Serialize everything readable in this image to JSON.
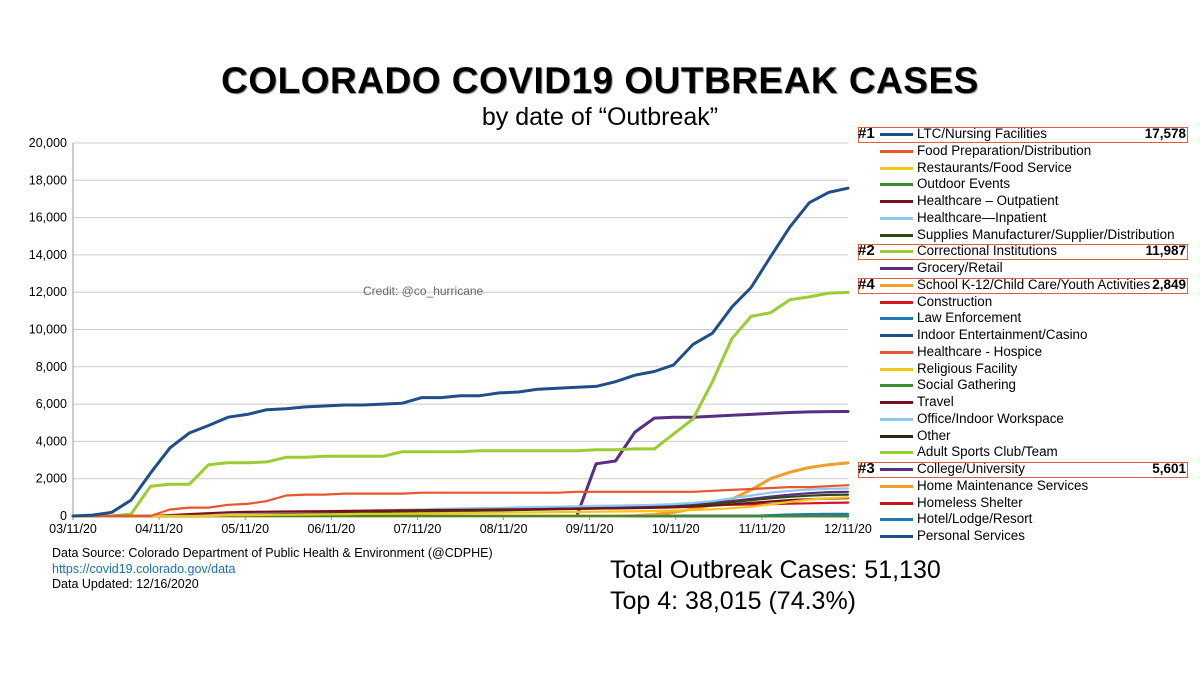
{
  "title": "COLORADO COVID19 OUTBREAK CASES",
  "subtitle": "by date of “Outbreak”",
  "credit": "Credit: @co_hurricane",
  "source": {
    "line1": "Data Source:  Colorado Department of Public Health & Environment (@CDPHE)",
    "link": "https://covid19.colorado.gov/data",
    "line3": "Data Updated:  12/16/2020"
  },
  "totals": {
    "line1": "Total Outbreak Cases:  51,130",
    "line2": "Top 4:  38,015 (74.3%)"
  },
  "colors": {
    "highlight_box": "#e0603a",
    "grid": "#cccccc",
    "axis": "#999999"
  },
  "chart_data": {
    "type": "line",
    "x_labels": [
      "03/11/20",
      "04/11/20",
      "05/11/20",
      "06/11/20",
      "07/11/20",
      "08/11/20",
      "09/11/20",
      "10/11/20",
      "11/11/20",
      "12/11/20"
    ],
    "x": [
      "03/11/20",
      "03/18/20",
      "03/25/20",
      "04/01/20",
      "04/08/20",
      "04/15/20",
      "04/22/20",
      "04/29/20",
      "05/06/20",
      "05/13/20",
      "05/20/20",
      "05/27/20",
      "06/03/20",
      "06/10/20",
      "06/17/20",
      "06/24/20",
      "07/01/20",
      "07/08/20",
      "07/15/20",
      "07/22/20",
      "07/29/20",
      "08/05/20",
      "08/12/20",
      "08/19/20",
      "08/26/20",
      "09/02/20",
      "09/09/20",
      "09/16/20",
      "09/23/20",
      "09/30/20",
      "10/07/20",
      "10/14/20",
      "10/21/20",
      "10/28/20",
      "11/04/20",
      "11/11/20",
      "11/18/20",
      "11/25/20",
      "12/02/20",
      "12/09/20",
      "12/16/20"
    ],
    "ylim": [
      0,
      20000
    ],
    "yticks": [
      0,
      2000,
      4000,
      6000,
      8000,
      10000,
      12000,
      14000,
      16000,
      18000,
      20000
    ],
    "ytick_labels": [
      "0",
      "2,000",
      "4,000",
      "6,000",
      "8,000",
      "10,000",
      "12,000",
      "14,000",
      "16,000",
      "18,000",
      "20,000"
    ],
    "grid": true,
    "legend_position": "right",
    "series": [
      {
        "name": "LTC/Nursing Facilities",
        "color": "#1f4e8a",
        "rank": "#1",
        "total": "17,578",
        "highlight": true,
        "values": [
          0,
          50,
          200,
          850,
          2300,
          3650,
          4450,
          4850,
          5300,
          5450,
          5700,
          5750,
          5850,
          5900,
          5950,
          5950,
          6000,
          6050,
          6350,
          6350,
          6450,
          6450,
          6600,
          6650,
          6800,
          6850,
          6900,
          6950,
          7200,
          7550,
          7750,
          8100,
          9200,
          9800,
          11200,
          12250,
          13900,
          15500,
          16800,
          17350,
          17578
        ]
      },
      {
        "name": "Food Preparation/Distribution",
        "color": "#e8552a",
        "values": [
          0,
          0,
          0,
          0,
          0,
          350,
          450,
          450,
          600,
          650,
          800,
          1100,
          1150,
          1150,
          1200,
          1200,
          1200,
          1200,
          1250,
          1250,
          1250,
          1250,
          1250,
          1250,
          1250,
          1250,
          1300,
          1300,
          1300,
          1300,
          1300,
          1300,
          1300,
          1350,
          1400,
          1450,
          1500,
          1550,
          1550,
          1600,
          1650
        ]
      },
      {
        "name": "Restaurants/Food Service",
        "color": "#f5c518",
        "values": [
          0,
          0,
          0,
          0,
          0,
          0,
          0,
          0,
          50,
          50,
          60,
          70,
          80,
          90,
          100,
          110,
          120,
          130,
          140,
          150,
          160,
          170,
          180,
          190,
          200,
          210,
          220,
          230,
          240,
          250,
          270,
          290,
          320,
          360,
          420,
          500,
          620,
          760,
          880,
          960,
          1000
        ]
      },
      {
        "name": "Outdoor Events",
        "color": "#3c8d2f",
        "values": [
          0,
          0,
          0,
          0,
          0,
          0,
          0,
          0,
          0,
          0,
          0,
          0,
          0,
          0,
          0,
          0,
          0,
          0,
          0,
          0,
          0,
          0,
          0,
          0,
          0,
          0,
          0,
          0,
          0,
          0,
          0,
          0,
          0,
          0,
          0,
          0,
          0,
          0,
          0,
          0,
          0
        ]
      },
      {
        "name": "Healthcare – Outpatient",
        "color": "#7a0f1c",
        "values": [
          0,
          0,
          0,
          0,
          0,
          50,
          100,
          150,
          200,
          220,
          230,
          240,
          250,
          260,
          270,
          280,
          290,
          300,
          310,
          320,
          330,
          340,
          350,
          360,
          370,
          380,
          390,
          400,
          410,
          420,
          440,
          460,
          500,
          550,
          620,
          700,
          780,
          850,
          900,
          940,
          960
        ]
      },
      {
        "name": "Healthcare—Inpatient",
        "color": "#8fc7f0",
        "values": [
          0,
          0,
          0,
          0,
          0,
          0,
          50,
          100,
          150,
          180,
          200,
          220,
          240,
          260,
          280,
          300,
          320,
          340,
          360,
          380,
          400,
          420,
          440,
          460,
          480,
          500,
          520,
          540,
          560,
          580,
          600,
          640,
          700,
          800,
          950,
          1100,
          1250,
          1350,
          1420,
          1460,
          1480
        ]
      },
      {
        "name": "Supplies Manufacturer/Supplier/Distribution",
        "color": "#2b4a1b",
        "values": [
          0,
          0,
          0,
          0,
          0,
          0,
          0,
          0,
          20,
          40,
          60,
          80,
          100,
          120,
          140,
          160,
          180,
          200,
          220,
          240,
          260,
          280,
          300,
          320,
          340,
          360,
          380,
          400,
          420,
          440,
          460,
          500,
          560,
          640,
          740,
          850,
          950,
          1030,
          1090,
          1130,
          1150
        ]
      },
      {
        "name": "Correctional Institutions",
        "color": "#9acd32",
        "rank": "#2",
        "total": "11,987",
        "highlight": true,
        "values": [
          0,
          0,
          0,
          100,
          1600,
          1700,
          1700,
          2750,
          2850,
          2850,
          2900,
          3150,
          3150,
          3200,
          3200,
          3200,
          3200,
          3450,
          3450,
          3450,
          3450,
          3500,
          3500,
          3500,
          3500,
          3500,
          3500,
          3550,
          3550,
          3600,
          3600,
          4400,
          5200,
          7200,
          9500,
          10700,
          10900,
          11600,
          11750,
          11950,
          11987
        ]
      },
      {
        "name": "Grocery/Retail",
        "color": "#5a2d82",
        "values": [
          0,
          0,
          0,
          0,
          0,
          20,
          40,
          60,
          80,
          100,
          120,
          140,
          160,
          180,
          200,
          220,
          240,
          260,
          280,
          300,
          320,
          340,
          360,
          380,
          400,
          420,
          440,
          460,
          480,
          500,
          520,
          560,
          620,
          700,
          800,
          920,
          1040,
          1140,
          1220,
          1280,
          1300
        ]
      },
      {
        "name": "School K-12/Child Care/Youth Activities",
        "color": "#f39c29",
        "rank": "#4",
        "total": "2,849",
        "highlight": true,
        "values": [
          0,
          0,
          0,
          0,
          0,
          0,
          0,
          0,
          0,
          0,
          0,
          0,
          0,
          0,
          0,
          0,
          0,
          0,
          0,
          0,
          0,
          0,
          0,
          0,
          0,
          0,
          0,
          0,
          0,
          20,
          80,
          200,
          380,
          600,
          900,
          1400,
          2000,
          2350,
          2600,
          2750,
          2849
        ]
      },
      {
        "name": "Construction",
        "color": "#d7191c",
        "values": [
          0,
          0,
          0,
          0,
          0,
          0,
          0,
          50,
          80,
          100,
          120,
          140,
          160,
          180,
          200,
          220,
          240,
          260,
          280,
          300,
          320,
          340,
          360,
          380,
          400,
          420,
          440,
          460,
          480,
          500,
          520,
          540,
          560,
          580,
          600,
          620,
          640,
          660,
          680,
          700,
          720
        ]
      },
      {
        "name": "Law Enforcement",
        "color": "#1f77b4",
        "values": [
          0,
          0,
          0,
          0,
          0,
          0,
          0,
          0,
          0,
          0,
          0,
          0,
          0,
          0,
          0,
          0,
          0,
          0,
          0,
          0,
          0,
          0,
          0,
          0,
          0,
          0,
          0,
          0,
          0,
          0,
          0,
          0,
          0,
          0,
          0,
          0,
          50,
          80,
          100,
          110,
          120
        ]
      },
      {
        "name": "Indoor Entertainment/Casino",
        "color": "#1f4e8a",
        "values": [
          0,
          0,
          0,
          0,
          0,
          0,
          0,
          0,
          0,
          0,
          0,
          0,
          0,
          0,
          0,
          0,
          0,
          0,
          0,
          0,
          0,
          0,
          0,
          0,
          0,
          0,
          0,
          0,
          0,
          0,
          0,
          0,
          0,
          0,
          0,
          0,
          0,
          0,
          0,
          0,
          0
        ]
      },
      {
        "name": "Healthcare - Hospice",
        "color": "#e8552a",
        "values": [
          0,
          0,
          0,
          0,
          0,
          0,
          0,
          0,
          0,
          0,
          0,
          0,
          0,
          0,
          0,
          0,
          0,
          0,
          0,
          0,
          0,
          0,
          0,
          0,
          0,
          0,
          0,
          0,
          0,
          0,
          0,
          0,
          0,
          0,
          0,
          0,
          0,
          0,
          0,
          0,
          0
        ]
      },
      {
        "name": "Religious Facility",
        "color": "#f5c518",
        "values": [
          0,
          0,
          0,
          0,
          0,
          0,
          0,
          0,
          0,
          0,
          0,
          0,
          0,
          0,
          0,
          0,
          0,
          0,
          0,
          0,
          0,
          0,
          0,
          0,
          0,
          0,
          0,
          0,
          0,
          0,
          0,
          0,
          0,
          0,
          0,
          0,
          0,
          0,
          0,
          0,
          0
        ]
      },
      {
        "name": "Social Gathering",
        "color": "#3c8d2f",
        "values": [
          0,
          0,
          0,
          0,
          0,
          0,
          0,
          0,
          0,
          0,
          0,
          0,
          0,
          0,
          0,
          0,
          0,
          0,
          0,
          0,
          0,
          0,
          0,
          0,
          0,
          0,
          0,
          0,
          0,
          0,
          0,
          0,
          0,
          0,
          0,
          0,
          0,
          0,
          0,
          0,
          0
        ]
      },
      {
        "name": "Travel",
        "color": "#7a0f1c",
        "values": [
          0,
          0,
          0,
          0,
          0,
          0,
          0,
          0,
          0,
          0,
          0,
          0,
          0,
          0,
          0,
          0,
          0,
          0,
          0,
          0,
          0,
          0,
          0,
          0,
          0,
          0,
          0,
          0,
          0,
          0,
          0,
          0,
          0,
          0,
          0,
          0,
          0,
          0,
          0,
          0,
          0
        ]
      },
      {
        "name": "Office/Indoor Workspace",
        "color": "#8fc7f0",
        "values": [
          0,
          0,
          0,
          0,
          0,
          0,
          0,
          0,
          0,
          0,
          0,
          0,
          0,
          0,
          0,
          0,
          0,
          0,
          0,
          0,
          0,
          0,
          0,
          0,
          0,
          0,
          0,
          0,
          0,
          0,
          0,
          0,
          0,
          0,
          0,
          0,
          0,
          0,
          0,
          0,
          0
        ]
      },
      {
        "name": "Other",
        "color": "#2b2b12",
        "values": [
          0,
          0,
          0,
          0,
          0,
          0,
          0,
          0,
          0,
          0,
          0,
          0,
          0,
          0,
          0,
          0,
          0,
          0,
          0,
          0,
          0,
          0,
          0,
          0,
          0,
          0,
          0,
          0,
          0,
          0,
          0,
          0,
          0,
          0,
          0,
          0,
          0,
          0,
          0,
          0,
          0
        ]
      },
      {
        "name": "Adult Sports Club/Team",
        "color": "#9acd32",
        "values": [
          0,
          0,
          0,
          0,
          0,
          0,
          0,
          0,
          0,
          0,
          0,
          0,
          0,
          0,
          0,
          0,
          0,
          0,
          0,
          0,
          0,
          0,
          0,
          0,
          0,
          0,
          0,
          0,
          0,
          0,
          0,
          0,
          0,
          0,
          0,
          0,
          0,
          0,
          0,
          0,
          0
        ]
      },
      {
        "name": "College/University",
        "color": "#5a2d82",
        "rank": "#3",
        "total": "5,601",
        "highlight": true,
        "values": [
          0,
          0,
          0,
          0,
          0,
          0,
          0,
          0,
          0,
          0,
          0,
          0,
          0,
          0,
          0,
          0,
          0,
          0,
          0,
          0,
          0,
          0,
          0,
          0,
          0,
          0,
          0,
          2800,
          2950,
          4500,
          5250,
          5300,
          5300,
          5350,
          5400,
          5450,
          5500,
          5550,
          5580,
          5600,
          5601
        ]
      },
      {
        "name": "Home Maintenance Services",
        "color": "#f39c29",
        "values": [
          0,
          0,
          0,
          0,
          0,
          0,
          0,
          0,
          0,
          0,
          0,
          0,
          0,
          0,
          0,
          0,
          0,
          0,
          0,
          0,
          0,
          0,
          0,
          0,
          0,
          0,
          0,
          0,
          0,
          0,
          0,
          0,
          0,
          0,
          0,
          0,
          0,
          0,
          0,
          0,
          0
        ]
      },
      {
        "name": "Homeless Shelter",
        "color": "#c0151b",
        "values": [
          0,
          0,
          0,
          0,
          0,
          0,
          0,
          0,
          0,
          0,
          0,
          0,
          0,
          0,
          0,
          0,
          0,
          0,
          0,
          0,
          0,
          0,
          0,
          0,
          0,
          0,
          0,
          0,
          0,
          0,
          0,
          0,
          0,
          0,
          0,
          0,
          0,
          0,
          0,
          0,
          0
        ]
      },
      {
        "name": "Hotel/Lodge/Resort",
        "color": "#1f77b4",
        "values": [
          0,
          0,
          0,
          0,
          0,
          0,
          0,
          0,
          0,
          0,
          0,
          0,
          0,
          0,
          0,
          0,
          0,
          0,
          0,
          0,
          0,
          0,
          0,
          0,
          0,
          0,
          0,
          0,
          0,
          0,
          0,
          0,
          0,
          0,
          0,
          0,
          0,
          0,
          0,
          0,
          0
        ]
      },
      {
        "name": "Personal Services",
        "color": "#1f4e8a",
        "values": [
          0,
          0,
          0,
          0,
          0,
          0,
          0,
          0,
          0,
          0,
          0,
          0,
          0,
          0,
          0,
          0,
          0,
          0,
          0,
          0,
          0,
          0,
          0,
          0,
          0,
          0,
          0,
          0,
          0,
          0,
          0,
          0,
          0,
          0,
          0,
          0,
          0,
          0,
          0,
          0,
          0
        ]
      }
    ]
  }
}
